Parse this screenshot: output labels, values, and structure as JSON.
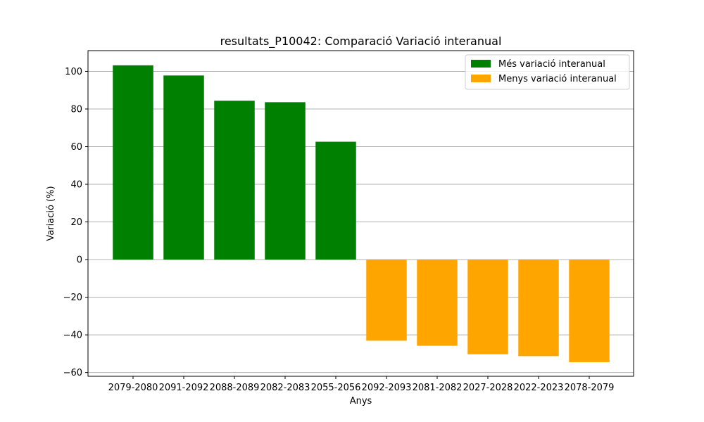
{
  "chart_data": {
    "type": "bar",
    "title": "resultats_P10042: Comparació Variació interanual",
    "xlabel": "Anys",
    "ylabel": "Variació (%)",
    "ylim": [
      -62,
      111
    ],
    "yticks": [
      -60,
      -40,
      -20,
      0,
      20,
      40,
      60,
      80,
      100
    ],
    "ytick_labels": [
      "−60",
      "−40",
      "−20",
      "0",
      "20",
      "40",
      "60",
      "80",
      "100"
    ],
    "grid": "horizontal",
    "legend_position": "top-right",
    "categories": [
      "2079-2080",
      "2091-2092",
      "2088-2089",
      "2082-2083",
      "2055-2056",
      "2092-2093",
      "2081-2082",
      "2027-2028",
      "2022-2023",
      "2078-2079"
    ],
    "series": [
      {
        "name": "Més variació interanual",
        "color": "#008000",
        "values": [
          103.2,
          97.8,
          84.4,
          83.6,
          62.6,
          null,
          null,
          null,
          null,
          null
        ]
      },
      {
        "name": "Menys variació interanual",
        "color": "#FFA500",
        "values": [
          null,
          null,
          null,
          null,
          null,
          -43.1,
          -45.8,
          -50.3,
          -51.3,
          -54.5
        ]
      }
    ]
  }
}
